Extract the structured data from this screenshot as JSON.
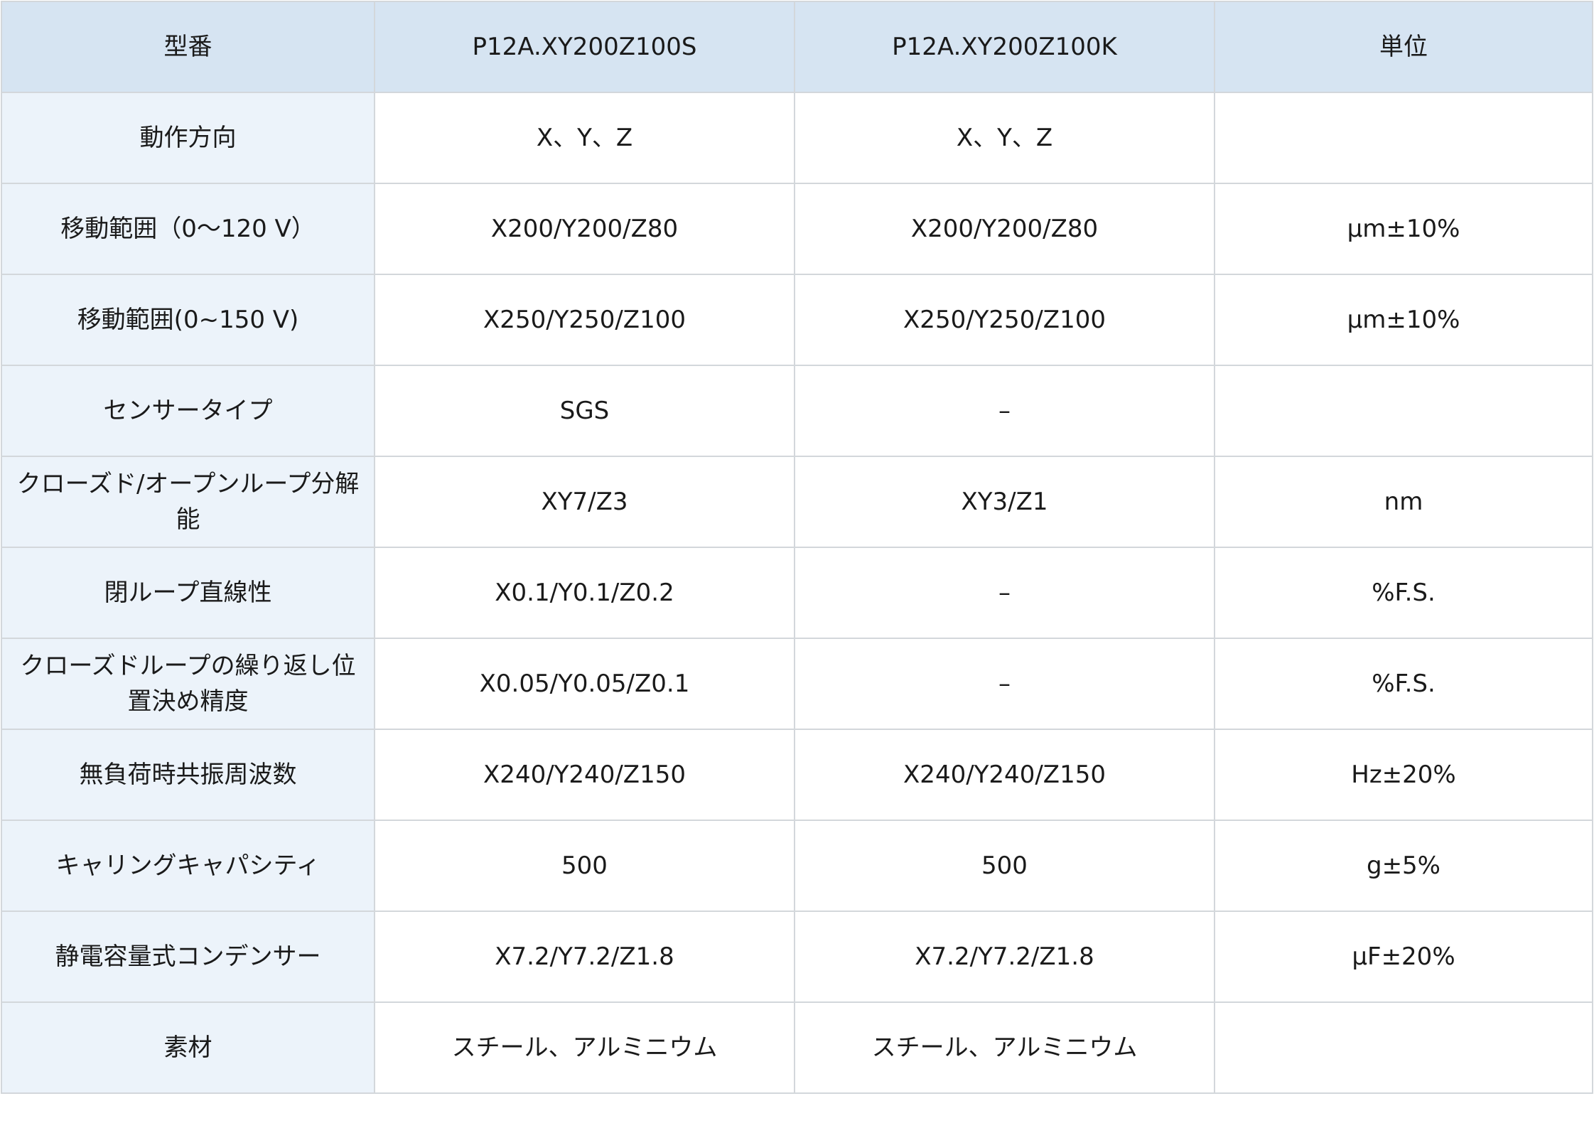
{
  "table": {
    "headers": {
      "model": "型番",
      "variant_s": "P12A.XY200Z100S",
      "variant_k": "P12A.XY200Z100K",
      "unit": "単位"
    },
    "rows": [
      {
        "label": "動作方向",
        "s": "X、Y、Z",
        "k": "X、Y、Z",
        "unit": ""
      },
      {
        "label": "移動範囲（0〜120 V）",
        "s": "X200/Y200/Z80",
        "k": "X200/Y200/Z80",
        "unit": "μm±10%"
      },
      {
        "label": "移動範囲(0~150 V)",
        "s": "X250/Y250/Z100",
        "k": "X250/Y250/Z100",
        "unit": "μm±10%"
      },
      {
        "label": "センサータイプ",
        "s": "SGS",
        "k": "–",
        "unit": ""
      },
      {
        "label": "クローズド/オープンループ分解能",
        "s": "XY7/Z3",
        "k": "XY3/Z1",
        "unit": "nm"
      },
      {
        "label": "閉ループ直線性",
        "s": "X0.1/Y0.1/Z0.2",
        "k": "–",
        "unit": "%F.S."
      },
      {
        "label": "クローズドループの繰り返し位置決め精度",
        "s": "X0.05/Y0.05/Z0.1",
        "k": "–",
        "unit": "%F.S."
      },
      {
        "label": "無負荷時共振周波数",
        "s": "X240/Y240/Z150",
        "k": "X240/Y240/Z150",
        "unit": "Hz±20%"
      },
      {
        "label": "キャリングキャパシティ",
        "s": "500",
        "k": "500",
        "unit": "g±5%"
      },
      {
        "label": "静電容量式コンデンサー",
        "s": "X7.2/Y7.2/Z1.8",
        "k": "X7.2/Y7.2/Z1.8",
        "unit": "μF±20%"
      },
      {
        "label": "素材",
        "s": "スチール、アルミニウム",
        "k": "スチール、アルミニウム",
        "unit": ""
      }
    ]
  }
}
